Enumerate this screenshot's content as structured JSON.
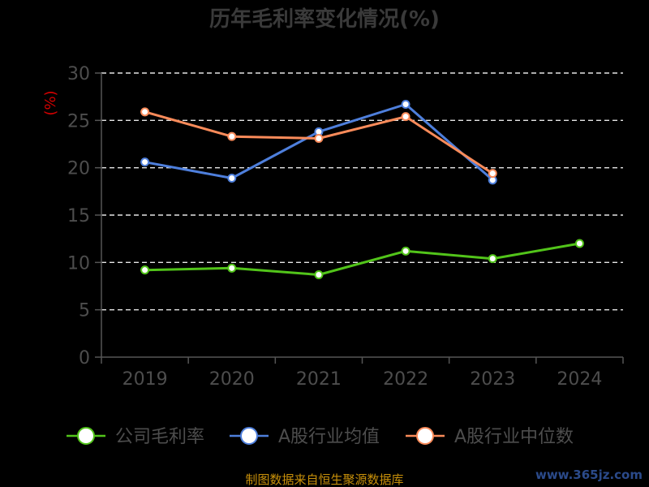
{
  "chart_data": {
    "type": "line",
    "title": "历年毛利率变化情况(%)",
    "unit_label": "(%)",
    "categories": [
      "2019",
      "2020",
      "2021",
      "2022",
      "2023",
      "2024"
    ],
    "ylim": [
      0,
      30
    ],
    "yticks": [
      0,
      5,
      10,
      15,
      20,
      25,
      30
    ],
    "grid": true,
    "legend_position": "bottom",
    "series": [
      {
        "name": "公司毛利率",
        "color": "#52c41a",
        "values": [
          9.2,
          9.4,
          8.7,
          11.2,
          10.4,
          12.0
        ]
      },
      {
        "name": "A股行业均值",
        "color": "#4e7fdc",
        "values": [
          20.6,
          18.9,
          23.8,
          26.7,
          18.7,
          null
        ]
      },
      {
        "name": "A股行业中位数",
        "color": "#fa8b5a",
        "values": [
          25.9,
          23.3,
          23.1,
          25.4,
          19.4,
          null
        ]
      }
    ]
  },
  "footer": {
    "source": "制图数据来自恒生聚源数据库",
    "watermark": "www.365jz.com"
  }
}
